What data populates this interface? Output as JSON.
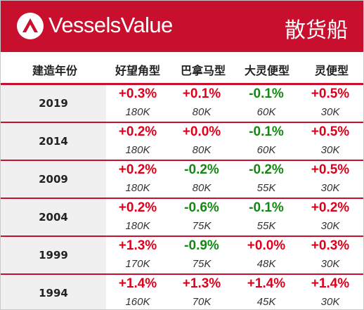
{
  "header": {
    "brand": "VesselsValue",
    "category": "散货船",
    "logo_icon": "vesselsvalue-logo-icon",
    "colors": {
      "brand_red": "#c8102e",
      "up": "#e0001b",
      "down": "#128a12"
    }
  },
  "columns": {
    "year": "建造年份",
    "capesize": "好望角型",
    "panamax": "巴拿马型",
    "supramax": "大灵便型",
    "handysize": "灵便型"
  },
  "rows": [
    {
      "year": "2019",
      "cells": [
        {
          "pct": "+0.3%",
          "dir": "up",
          "size": "180K"
        },
        {
          "pct": "+0.1%",
          "dir": "up",
          "size": "80K"
        },
        {
          "pct": "-0.1%",
          "dir": "down",
          "size": "60K"
        },
        {
          "pct": "+0.5%",
          "dir": "up",
          "size": "30K"
        }
      ]
    },
    {
      "year": "2014",
      "cells": [
        {
          "pct": "+0.2%",
          "dir": "up",
          "size": "180K"
        },
        {
          "pct": "+0.0%",
          "dir": "up",
          "size": "80K"
        },
        {
          "pct": "-0.1%",
          "dir": "down",
          "size": "60K"
        },
        {
          "pct": "+0.5%",
          "dir": "up",
          "size": "30K"
        }
      ]
    },
    {
      "year": "2009",
      "cells": [
        {
          "pct": "+0.2%",
          "dir": "up",
          "size": "180K"
        },
        {
          "pct": "-0.2%",
          "dir": "down",
          "size": "80K"
        },
        {
          "pct": "-0.2%",
          "dir": "down",
          "size": "55K"
        },
        {
          "pct": "+0.5%",
          "dir": "up",
          "size": "30K"
        }
      ]
    },
    {
      "year": "2004",
      "cells": [
        {
          "pct": "+0.2%",
          "dir": "up",
          "size": "180K"
        },
        {
          "pct": "-0.6%",
          "dir": "down",
          "size": "75K"
        },
        {
          "pct": "-0.1%",
          "dir": "down",
          "size": "55K"
        },
        {
          "pct": "+0.2%",
          "dir": "up",
          "size": "30K"
        }
      ]
    },
    {
      "year": "1999",
      "cells": [
        {
          "pct": "+1.3%",
          "dir": "up",
          "size": "170K"
        },
        {
          "pct": "-0.9%",
          "dir": "down",
          "size": "75K"
        },
        {
          "pct": "+0.0%",
          "dir": "up",
          "size": "48K"
        },
        {
          "pct": "+0.3%",
          "dir": "up",
          "size": "30K"
        }
      ]
    },
    {
      "year": "1994",
      "cells": [
        {
          "pct": "+1.4%",
          "dir": "up",
          "size": "160K"
        },
        {
          "pct": "+1.3%",
          "dir": "up",
          "size": "70K"
        },
        {
          "pct": "+1.4%",
          "dir": "up",
          "size": "45K"
        },
        {
          "pct": "+1.4%",
          "dir": "up",
          "size": "30K"
        }
      ]
    }
  ]
}
